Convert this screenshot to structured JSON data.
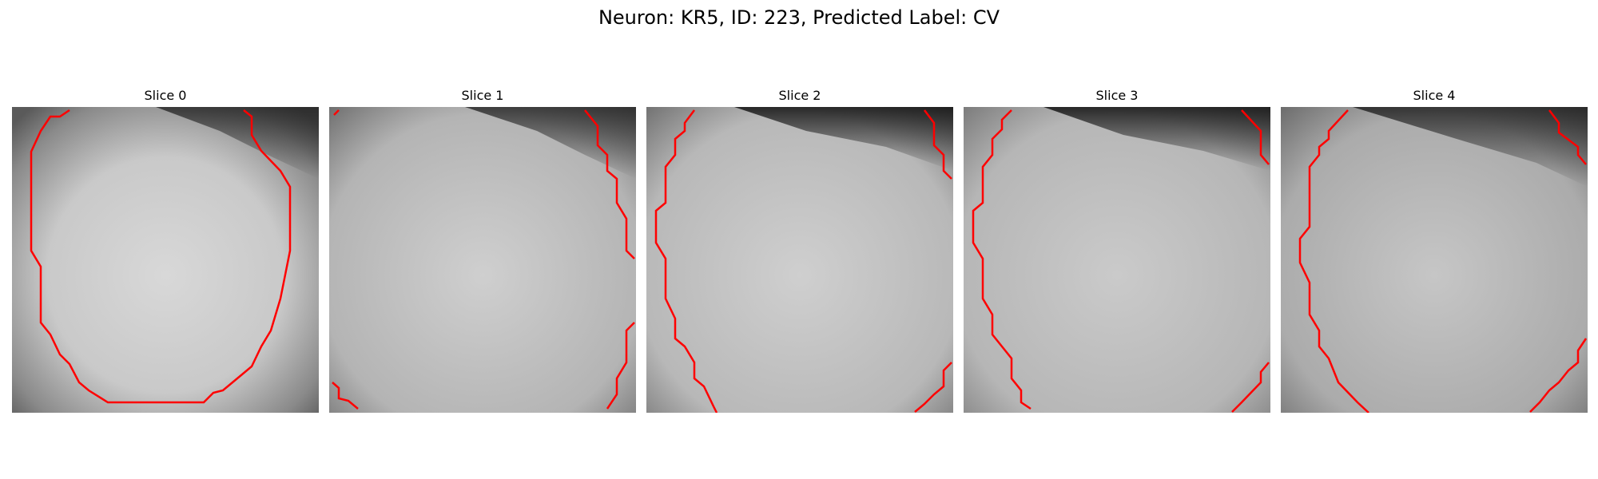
{
  "figure": {
    "title": "Neuron: KR5, ID: 223, Predicted Label: CV"
  },
  "panels": [
    {
      "title": "Slice 0"
    },
    {
      "title": "Slice 1"
    },
    {
      "title": "Slice 2"
    },
    {
      "title": "Slice 3"
    },
    {
      "title": "Slice 4"
    }
  ],
  "colors": {
    "contour": "#ff0000",
    "background": "#ffffff"
  }
}
